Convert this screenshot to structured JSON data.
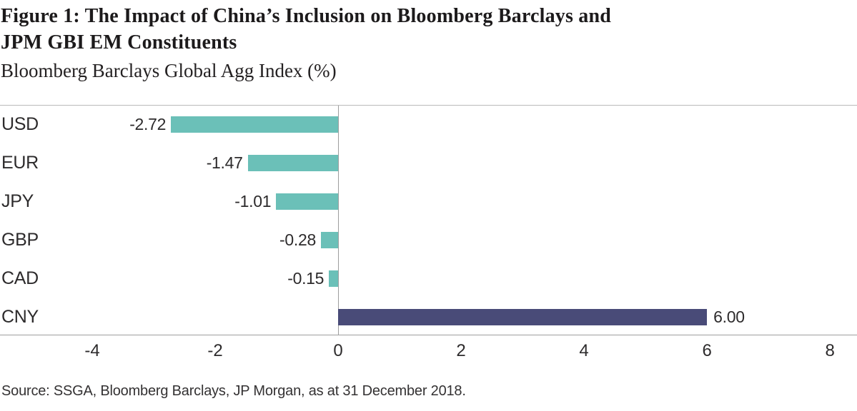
{
  "header": {
    "title_line1": "Figure 1: The Impact of China’s Inclusion on Bloomberg Barclays and",
    "title_line2": "JPM GBI EM Constituents",
    "subtitle": "Bloomberg Barclays Global Agg Index (%)"
  },
  "chart_data": {
    "type": "bar",
    "orientation": "horizontal",
    "title": "Figure 1: The Impact of China’s Inclusion on Bloomberg Barclays and JPM GBI EM Constituents",
    "subtitle_axis_label": "Bloomberg Barclays Global Agg Index (%)",
    "categories": [
      "USD",
      "EUR",
      "JPY",
      "GBP",
      "CAD",
      "CNY"
    ],
    "values": [
      -2.72,
      -1.47,
      -1.01,
      -0.28,
      -0.15,
      6.0
    ],
    "value_labels": [
      "-2.72",
      "-1.47",
      "-1.01",
      "-0.28",
      "-0.15",
      "6.00"
    ],
    "xlim": [
      -5.5,
      8.44
    ],
    "xticks": [
      -4,
      -2,
      0,
      2,
      4,
      6,
      8
    ],
    "grid": false,
    "legend": "none",
    "colors": {
      "negative_bar": "#6bc0b8",
      "positive_bar": "#494b78"
    }
  },
  "source": {
    "text": "Source: SSGA, Bloomberg Barclays, JP Morgan, as at 31 December 2018."
  }
}
